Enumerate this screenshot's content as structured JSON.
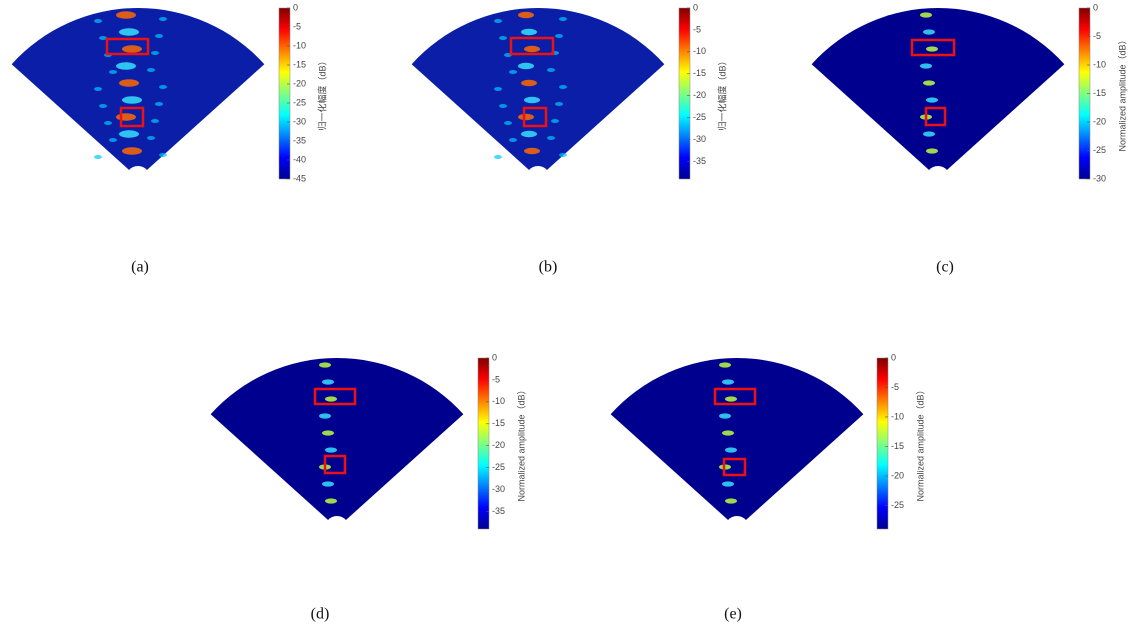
{
  "panels": [
    {
      "label": "(a)",
      "colorbar": {
        "label": "归一化幅度（dB）",
        "lim": [
          -45,
          0
        ],
        "ticks": [
          0,
          -5,
          -10,
          -15,
          -20,
          -25,
          -30,
          -35,
          -40,
          -45
        ]
      }
    },
    {
      "label": "(b)",
      "colorbar": {
        "label": "归一化幅度（dB）",
        "lim": [
          -39,
          0
        ],
        "ticks": [
          0,
          -5,
          -10,
          -15,
          -20,
          -25,
          -30,
          -35
        ]
      }
    },
    {
      "label": "(c)",
      "colorbar": {
        "label": "Normalized amplitude（dB）",
        "lim": [
          -30,
          0
        ],
        "ticks": [
          0,
          -5,
          -10,
          -15,
          -20,
          -25,
          -30
        ]
      }
    },
    {
      "label": "(d)",
      "colorbar": {
        "label": "Normalized amplitude（dB）",
        "lim": [
          -39,
          0
        ],
        "ticks": [
          0,
          -5,
          -10,
          -15,
          -20,
          -25,
          -30,
          -35
        ]
      }
    },
    {
      "label": "(e)",
      "colorbar": {
        "label": "Normalized amplitude（dB）",
        "lim": [
          -29,
          0
        ],
        "ticks": [
          0,
          -5,
          -10,
          -15,
          -20,
          -25
        ]
      }
    }
  ]
}
